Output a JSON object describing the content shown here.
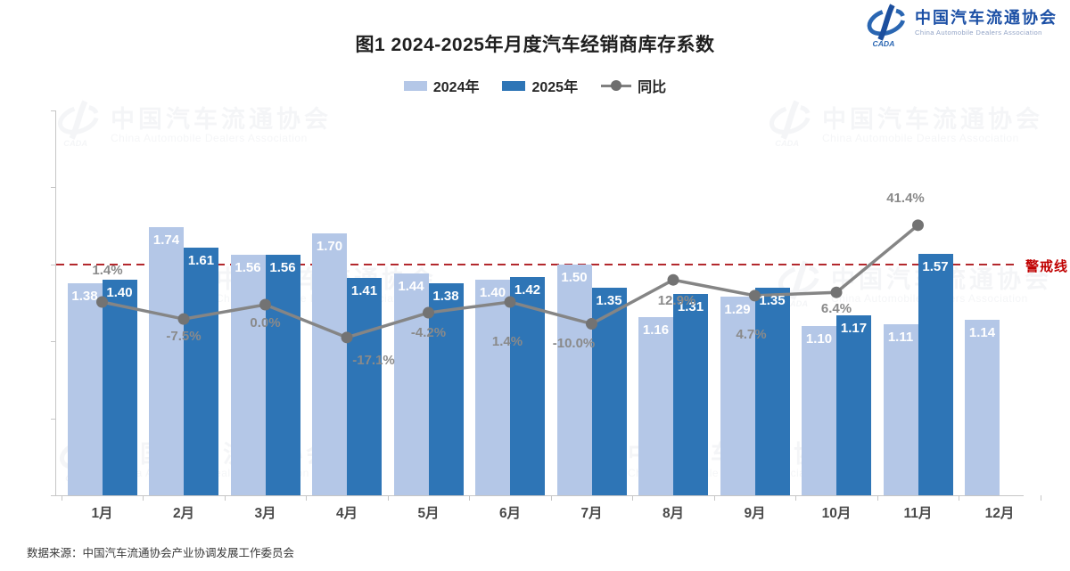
{
  "logo": {
    "cn": "中国汽车流通协会",
    "en": "China Automobile Dealers Association",
    "mark": "CADA"
  },
  "title": "图1  2024-2025年月度汽车经销商库存系数",
  "legend": {
    "items": [
      {
        "label": "2024年",
        "color": "#b4c7e7",
        "type": "swatch"
      },
      {
        "label": "2025年",
        "color": "#2e75b6",
        "type": "swatch"
      },
      {
        "label": "同比",
        "color": "#808080",
        "type": "line"
      }
    ]
  },
  "threshold": {
    "label": "警戒线",
    "value": 1.5,
    "color": "#c00000"
  },
  "source": "数据来源：中国汽车流通协会产业协调发展工作委员会",
  "chart_data": {
    "type": "bar",
    "title": "图1  2024-2025年月度汽车经销商库存系数",
    "categories": [
      "1月",
      "2月",
      "3月",
      "4月",
      "5月",
      "6月",
      "7月",
      "8月",
      "9月",
      "10月",
      "11月",
      "12月"
    ],
    "series": [
      {
        "name": "2024年",
        "color": "#b4c7e7",
        "values": [
          1.38,
          1.74,
          1.56,
          1.7,
          1.44,
          1.4,
          1.5,
          1.16,
          1.29,
          1.1,
          1.11,
          1.14
        ]
      },
      {
        "name": "2025年",
        "color": "#2e75b6",
        "values": [
          1.4,
          1.61,
          1.56,
          1.41,
          1.38,
          1.42,
          1.35,
          1.31,
          1.35,
          1.17,
          1.57,
          null
        ]
      }
    ],
    "line": {
      "name": "同比",
      "unit": "percent_yoy",
      "values": [
        1.4,
        -7.5,
        0.0,
        -17.1,
        -4.2,
        1.4,
        -10.0,
        12.9,
        4.7,
        6.4,
        41.4,
        null
      ],
      "labels": [
        "1.4%",
        "-7.5%",
        "0.0%",
        "-17.1%",
        "-4.2%",
        "1.4%",
        "-10.0%",
        "12.9%",
        "4.7%",
        "6.4%",
        "41.4%",
        null
      ],
      "color": "#858585",
      "marker_color": "#737373"
    },
    "ylim": [
      0,
      2.5
    ],
    "yticks": [
      "0.00",
      "0.50",
      "1.00",
      "1.50",
      "2.00",
      "2.50"
    ],
    "ytick_values": [
      0,
      0.5,
      1.0,
      1.5,
      2.0,
      2.5
    ],
    "threshold_value": 1.5,
    "grid": false,
    "legend_position": "top",
    "label_offsets": [
      [
        6,
        -34
      ],
      [
        0,
        21
      ],
      [
        0,
        22
      ],
      [
        30,
        27
      ],
      [
        0,
        24
      ],
      [
        -3,
        46
      ],
      [
        -20,
        23
      ],
      [
        4,
        25
      ],
      [
        -4,
        45
      ],
      [
        0,
        20
      ],
      [
        -14,
        -29
      ],
      null
    ]
  }
}
